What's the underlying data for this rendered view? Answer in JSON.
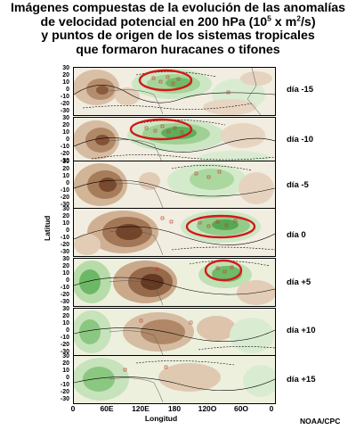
{
  "title": {
    "line1": "Imágenes compuestas de la evolución de las anomalías",
    "line2_pre": "de velocidad potencial en 200 hPa (10",
    "line2_exp1": "5",
    "line2_mid": " x m",
    "line2_exp2": "2",
    "line2_post": "/s)",
    "line3": "y puntos de origen de los sistemas tropicales",
    "line4": "que formaron huracanes o tifones"
  },
  "y_axis": {
    "label": "Latitud",
    "ticks": [
      "30",
      "20",
      "10",
      "0",
      "-10",
      "-20",
      "-30"
    ]
  },
  "x_axis": {
    "label": "Longitud",
    "ticks": [
      "0",
      "60E",
      "120E",
      "180",
      "120O",
      "60O",
      "0"
    ]
  },
  "credit": "NOAA/CPC",
  "panels": [
    {
      "day": "día -15"
    },
    {
      "day": "día -10"
    },
    {
      "day": "día -5"
    },
    {
      "day": "día 0"
    },
    {
      "day": "día +5"
    },
    {
      "day": "día +10"
    },
    {
      "day": "día +15"
    }
  ],
  "colors": {
    "positive": "#8c5a3c",
    "negative": "#3f9b45",
    "highlight": "#d11a1a",
    "origin_marker": "#c0392b"
  }
}
